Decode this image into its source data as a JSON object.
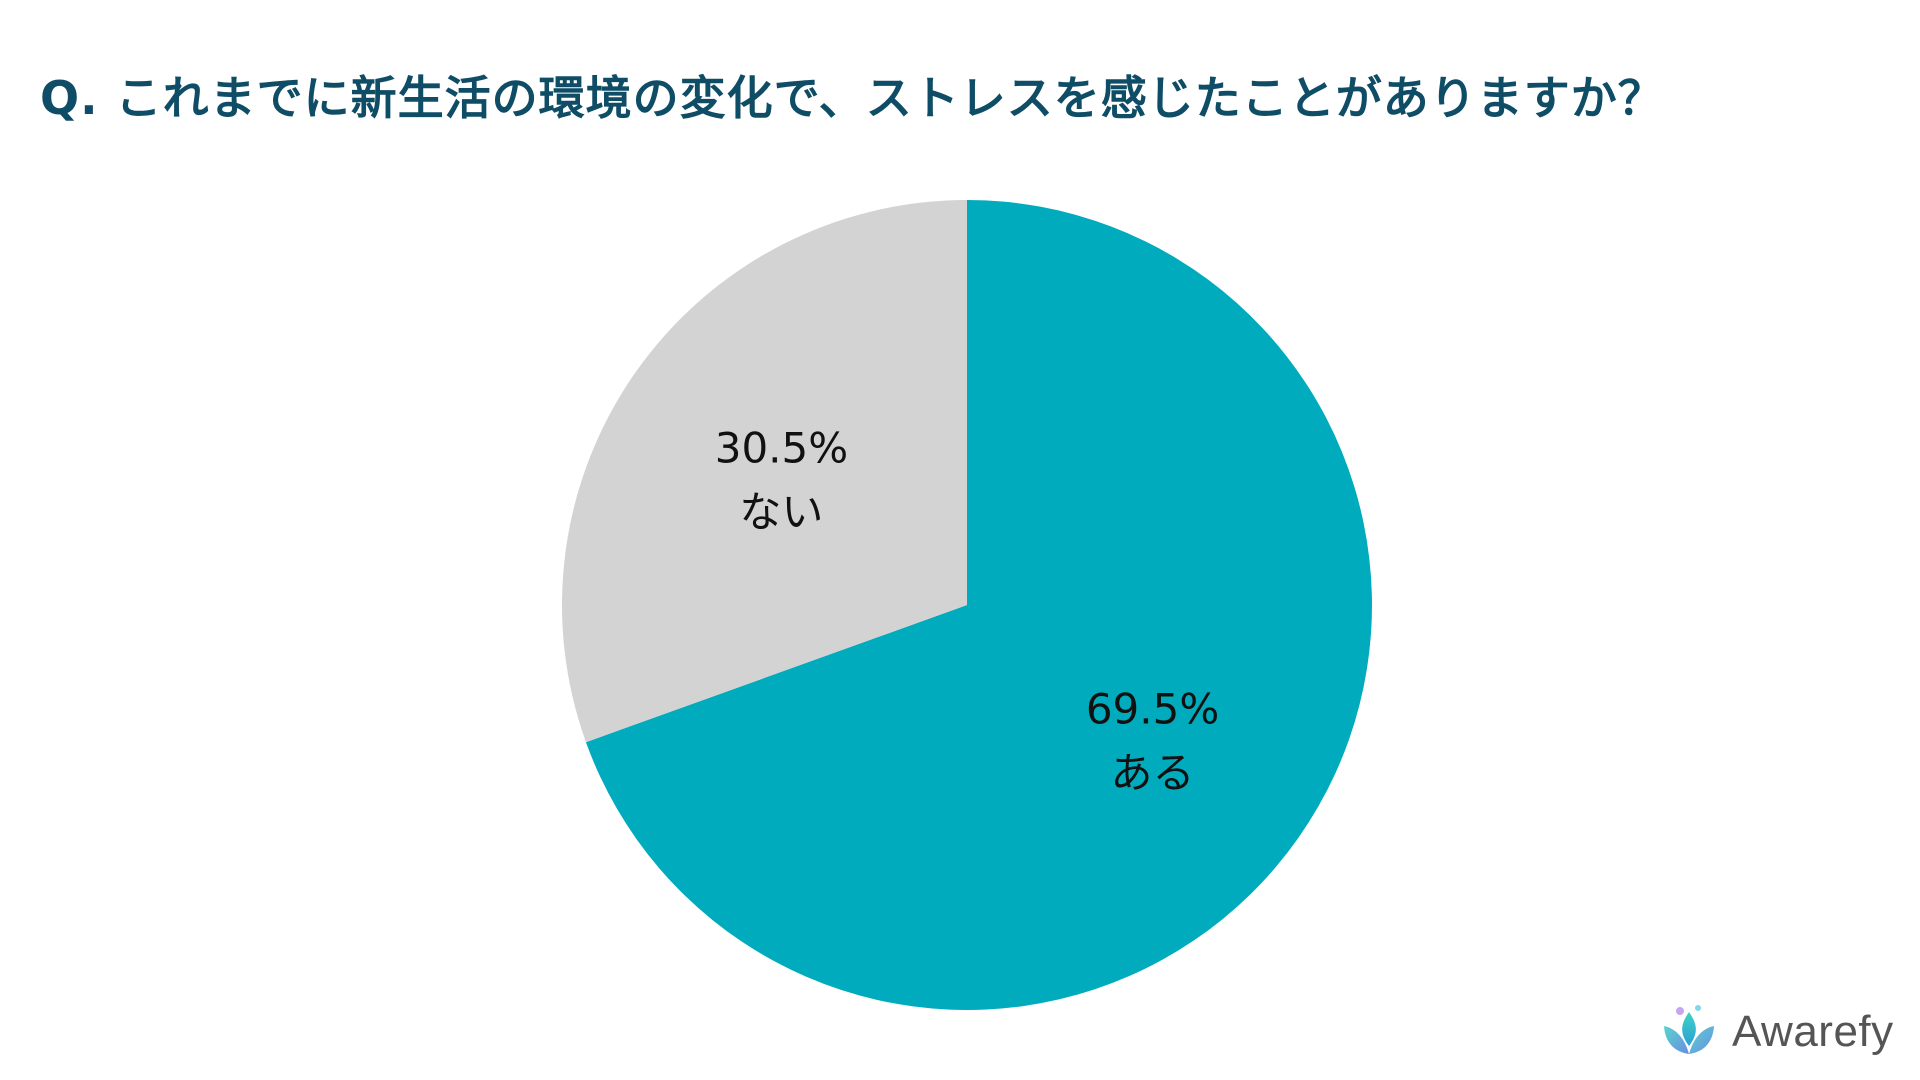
{
  "title": "Q. これまでに新生活の環境の変化で、ストレスを感じたことがありますか？",
  "brand": {
    "name": "Awarefy",
    "logo_icon": "lotus-drop-icon"
  },
  "colors": {
    "title": "#0f4d66",
    "aru": "#00abbd",
    "nai": "#d3d3d3"
  },
  "chart_data": {
    "type": "pie",
    "start_angle_deg": 0,
    "direction": "clockwise",
    "slices": [
      {
        "label": "ある",
        "value": 69.5,
        "value_label": "69.5%",
        "color": "#00abbd"
      },
      {
        "label": "ない",
        "value": 30.5,
        "value_label": "30.5%",
        "color": "#d3d3d3"
      }
    ]
  }
}
